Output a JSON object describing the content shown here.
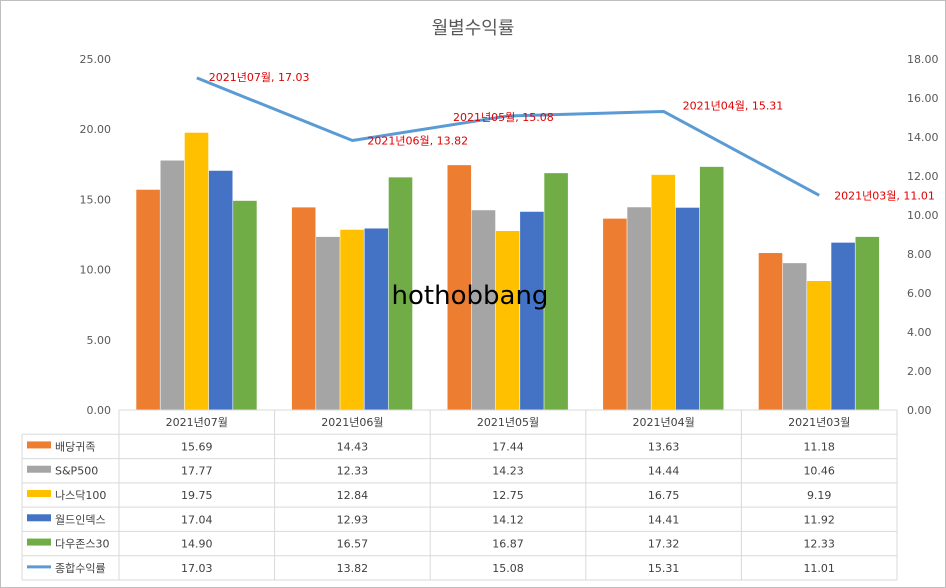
{
  "chart_data": {
    "type": "bar",
    "title": "월별수익률",
    "watermark": "hothobbang",
    "categories": [
      "2021년07월",
      "2021년06월",
      "2021년05월",
      "2021년04월",
      "2021년03월"
    ],
    "series": [
      {
        "name": "배당귀족",
        "type": "bar",
        "axis": "left",
        "color": "#ED7D31",
        "values": [
          15.69,
          14.43,
          17.44,
          13.63,
          11.18
        ]
      },
      {
        "name": "S&P500",
        "type": "bar",
        "axis": "left",
        "color": "#A5A5A5",
        "values": [
          17.77,
          12.33,
          14.23,
          14.44,
          10.46
        ]
      },
      {
        "name": "나스닥100",
        "type": "bar",
        "axis": "left",
        "color": "#FFC000",
        "values": [
          19.75,
          12.84,
          12.75,
          16.75,
          9.19
        ]
      },
      {
        "name": "월드인덱스",
        "type": "bar",
        "axis": "left",
        "color": "#4472C4",
        "values": [
          17.04,
          12.93,
          14.12,
          14.41,
          11.92
        ]
      },
      {
        "name": "다우존스30",
        "type": "bar",
        "axis": "left",
        "color": "#70AD47",
        "values": [
          14.9,
          16.57,
          16.87,
          17.32,
          12.33
        ]
      },
      {
        "name": "종합수익률",
        "type": "line",
        "axis": "right",
        "color": "#5B9BD5",
        "values": [
          17.03,
          13.82,
          15.08,
          15.31,
          11.01
        ]
      }
    ],
    "cells": [
      [
        "15.69",
        "14.43",
        "17.44",
        "13.63",
        "11.18"
      ],
      [
        "17.77",
        "12.33",
        "14.23",
        "14.44",
        "10.46"
      ],
      [
        "19.75",
        "12.84",
        "12.75",
        "16.75",
        "9.19"
      ],
      [
        "17.04",
        "12.93",
        "14.12",
        "14.41",
        "11.92"
      ],
      [
        "14.90",
        "16.57",
        "16.87",
        "17.32",
        "12.33"
      ],
      [
        "17.03",
        "13.82",
        "15.08",
        "15.31",
        "11.01"
      ]
    ],
    "annotations": [
      "2021년07월, 17.03",
      "2021년06월, 13.82",
      "2021년05월, 15.08",
      "2021년04월, 15.31",
      "2021년03월, 11.01"
    ],
    "y_left": {
      "min": 0,
      "max": 25,
      "step": 5,
      "tick_labels": [
        "0.00",
        "5.00",
        "10.00",
        "15.00",
        "20.00",
        "25.00"
      ]
    },
    "y_right": {
      "min": 0,
      "max": 18,
      "step": 2,
      "tick_labels": [
        "0.00",
        "2.00",
        "4.00",
        "6.00",
        "8.00",
        "10.00",
        "12.00",
        "14.00",
        "16.00",
        "18.00"
      ]
    },
    "grid": false,
    "legend": "data-table"
  }
}
